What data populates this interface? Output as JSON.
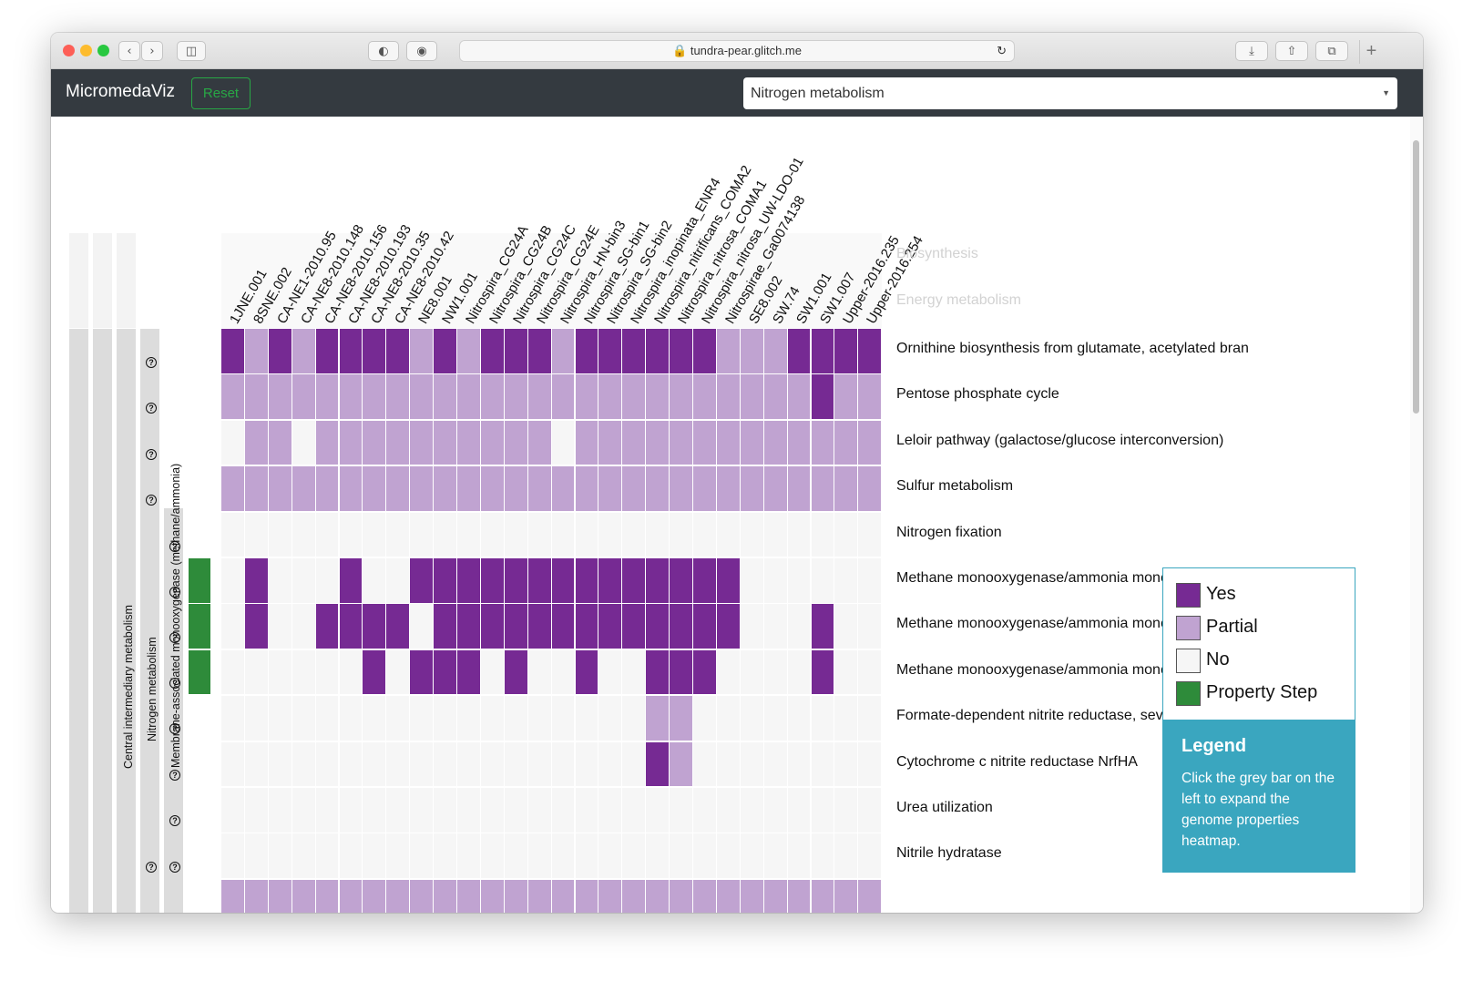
{
  "browser": {
    "url": "tundra-pear.glitch.me"
  },
  "navbar": {
    "brand": "MicromedaViz",
    "reset_label": "Reset",
    "pathway_select_value": "Nitrogen metabolism"
  },
  "heatmap": {
    "columns": [
      "1JNE.001",
      "8SNE.002",
      "CA-NE1-2010.95",
      "CA-NE8-2010.148",
      "CA-NE8-2010.156",
      "CA-NE8-2010.193",
      "CA-NE8-2010.35",
      "CA-NE8-2010.42",
      "NE8.001",
      "NW1.001",
      "Nitrospira_CG24A",
      "Nitrospira_CG24B",
      "Nitrospira_CG24C",
      "Nitrospira_CG24E",
      "Nitrospira_HN-bin3",
      "Nitrospira_SG-bin1",
      "Nitrospira_SG-bin2",
      "Nitrospira_inopinata_ENR4",
      "Nitrospira_nitrificans_COMA2",
      "Nitrospira_nitrosa_COMA1",
      "Nitrospira_nitrosa_UW-LDO-01",
      "Nitrospirae_Ga0074138",
      "SE8.002",
      "SW.74",
      "SW1.001",
      "SW1.007",
      "Upper-2016.235",
      "Upper-2016.254"
    ],
    "faded_rows": [
      "Biosynthesis",
      "Energy metabolism"
    ],
    "rows": [
      {
        "label": "Ornithine biosynthesis from glutamate, acetylated bran",
        "cells": "YPYPYYYYPYPYYYPYYYYYYPPPYYYY"
      },
      {
        "label": "Pentose phosphate cycle",
        "cells": "PPPPPPPPPPPPPPPPPPPPPPPPPYPP"
      },
      {
        "label": "Leloir pathway (galactose/glucose interconversion)",
        "cells": "NPPNPPPPPPPPPPNPPPPPPPPPPPPP"
      },
      {
        "label": "Sulfur metabolism",
        "cells": "PPPPPPPPPPPPPPPPPPPPPPPPPPPP"
      },
      {
        "label": "Nitrogen fixation",
        "cells": "NNNNNNNNNNNNNNNNNNNNNNNNNNNN"
      },
      {
        "label": "Methane monooxygenase/ammonia monc",
        "cells": "NYNNNYNNYYYYYYYYYYYYYYNNNNNN",
        "step": true
      },
      {
        "label": "Methane monooxygenase/ammonia monc",
        "cells": "NYNNYYYYNYYYYYYYYYYYYYNNNYNN",
        "step": true
      },
      {
        "label": "Methane monooxygenase/ammonia monc",
        "cells": "NNNNNNYNYYYNYNNYNNYYYNNNNYNN",
        "step": true
      },
      {
        "label": "Formate-dependent nitrite reductase, sev",
        "cells": "NNNNNNNNNNNNNNNNNNPPNNNNNNNN"
      },
      {
        "label": "Cytochrome c nitrite reductase NrfHA",
        "cells": "NNNNNNNNNNNNNNNNNNYPNNNNNNNN"
      },
      {
        "label": "Urea utilization",
        "cells": "NNNNNNNNNNNNNNNNNNNNNNNNNNNN"
      },
      {
        "label": "Nitrile hydratase",
        "cells": "NNNNNNNNNNNNNNNNNNNNNNNNNNNN"
      },
      {
        "label": "",
        "cells": "PPPPPPPPPPPPPPPPPPPPPPPPPPPP"
      }
    ],
    "hierarchy_labels": {
      "level1": "Central intermediary metabolism",
      "level2": "Nitrogen metabolism",
      "level3": "Membrane-associated monooxygenase (methane/ammonia)"
    },
    "colors": {
      "yes": "#762a93",
      "partial": "#c0a3d1",
      "no": "#f6f6f6",
      "step": "#2e8b3a",
      "grey_bar": "#dcdcdc"
    }
  },
  "legend": {
    "items": [
      {
        "label": "Yes",
        "color": "#762a93"
      },
      {
        "label": "Partial",
        "color": "#c0a3d1"
      },
      {
        "label": "No",
        "color": "#f6f6f6"
      },
      {
        "label": "Property Step",
        "color": "#2e8b3a"
      }
    ],
    "title": "Legend",
    "description": "Click the grey bar on the left to expand the genome properties heatmap."
  }
}
